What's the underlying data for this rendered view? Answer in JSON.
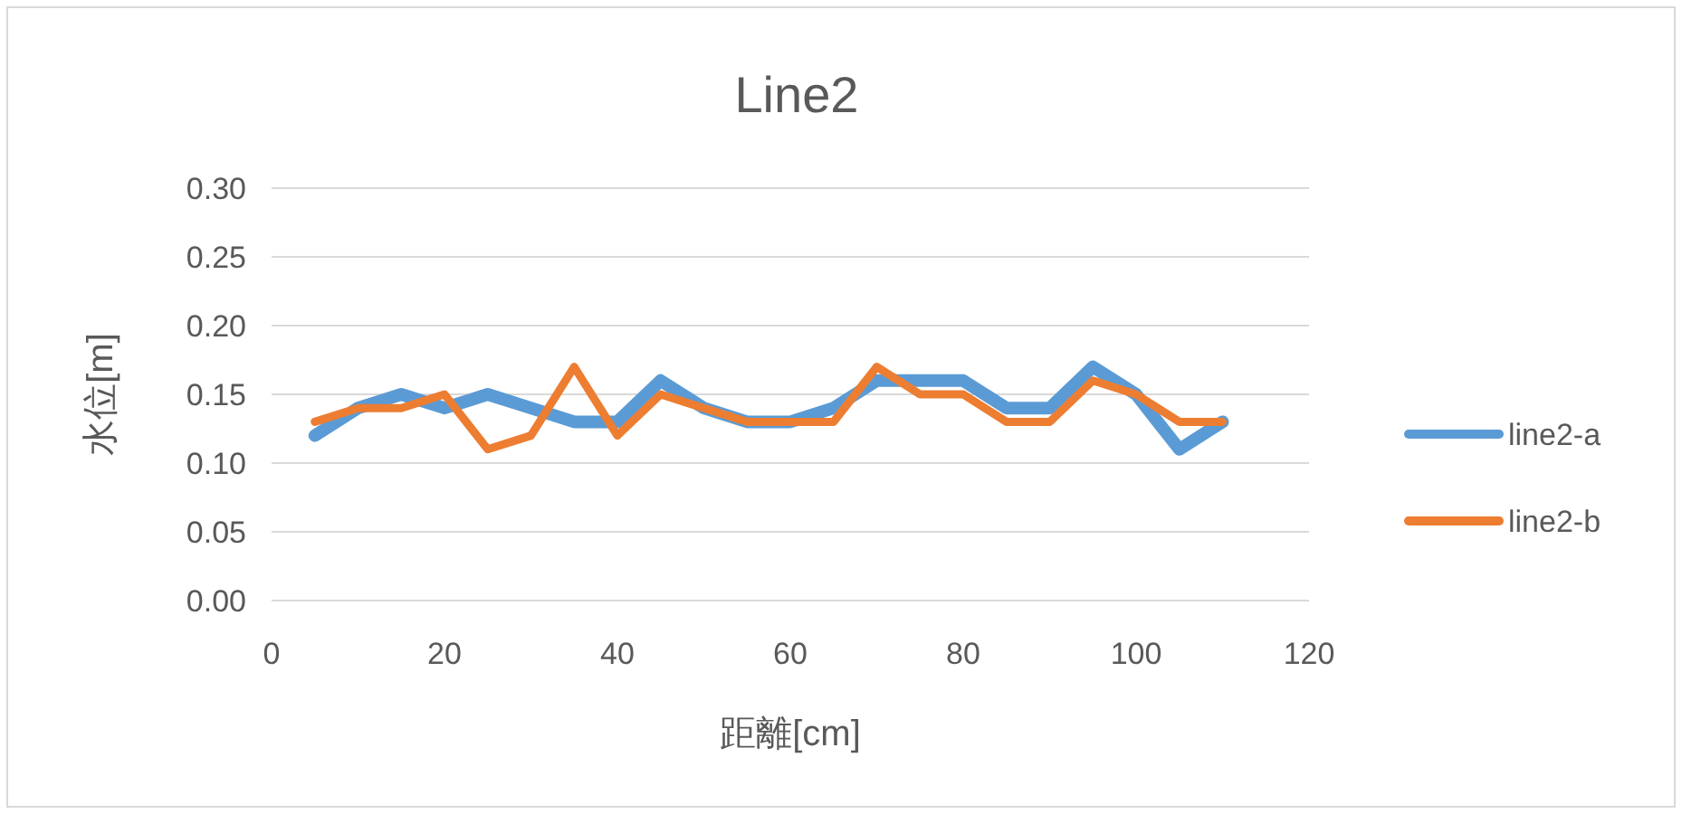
{
  "chart_data": {
    "type": "line",
    "title": "Line2",
    "xlabel": "距離[cm]",
    "ylabel": "水位[m]",
    "x": [
      5,
      10,
      15,
      20,
      25,
      30,
      35,
      40,
      45,
      50,
      55,
      60,
      65,
      70,
      75,
      80,
      85,
      90,
      95,
      100,
      105,
      110
    ],
    "series": [
      {
        "name": "line2-a",
        "color": "#5b9bd5",
        "values": [
          0.12,
          0.14,
          0.15,
          0.14,
          0.15,
          0.14,
          0.13,
          0.13,
          0.16,
          0.14,
          0.13,
          0.13,
          0.14,
          0.16,
          0.16,
          0.16,
          0.14,
          0.14,
          0.17,
          0.15,
          0.11,
          0.13
        ]
      },
      {
        "name": "line2-b",
        "color": "#ed7d31",
        "values": [
          0.13,
          0.14,
          0.14,
          0.15,
          0.11,
          0.12,
          0.17,
          0.12,
          0.15,
          0.14,
          0.13,
          0.13,
          0.13,
          0.17,
          0.15,
          0.15,
          0.13,
          0.13,
          0.16,
          0.15,
          0.13,
          0.13
        ]
      }
    ],
    "xlim": [
      0,
      120
    ],
    "xticks": [
      0,
      20,
      40,
      60,
      80,
      100,
      120
    ],
    "ylim": [
      0,
      0.3
    ],
    "yticks": [
      {
        "value": 0,
        "label": "0.00"
      },
      {
        "value": 0.05,
        "label": "0.05"
      },
      {
        "value": 0.1,
        "label": "0.10"
      },
      {
        "value": 0.15,
        "label": "0.15"
      },
      {
        "value": 0.2,
        "label": "0.20"
      },
      {
        "value": 0.25,
        "label": "0.25"
      },
      {
        "value": 0.3,
        "label": "0.30"
      }
    ],
    "grid": "y",
    "legend": "right",
    "marker": "none",
    "line_style": "solid"
  }
}
